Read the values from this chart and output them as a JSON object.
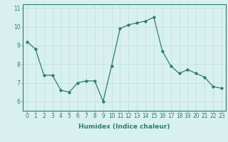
{
  "x": [
    0,
    1,
    2,
    3,
    4,
    5,
    6,
    7,
    8,
    9,
    10,
    11,
    12,
    13,
    14,
    15,
    16,
    17,
    18,
    19,
    20,
    21,
    22,
    23
  ],
  "y": [
    9.2,
    8.8,
    7.4,
    7.4,
    6.6,
    6.5,
    7.0,
    7.1,
    7.1,
    6.0,
    7.9,
    9.9,
    10.1,
    10.2,
    10.3,
    10.5,
    8.7,
    7.9,
    7.5,
    7.7,
    7.5,
    7.3,
    6.8,
    6.7
  ],
  "xlabel": "Humidex (Indice chaleur)",
  "ylim": [
    5.5,
    11.2
  ],
  "xlim": [
    -0.5,
    23.5
  ],
  "yticks": [
    6,
    7,
    8,
    9,
    10,
    11
  ],
  "xticks": [
    0,
    1,
    2,
    3,
    4,
    5,
    6,
    7,
    8,
    9,
    10,
    11,
    12,
    13,
    14,
    15,
    16,
    17,
    18,
    19,
    20,
    21,
    22,
    23
  ],
  "line_color": "#2e7d6e",
  "marker": "D",
  "marker_size": 1.8,
  "line_width": 0.9,
  "bg_color": "#d8f0f0",
  "grid_color": "#c0dede",
  "axis_color": "#2e7d6e",
  "tick_color": "#2e7d6e",
  "xlabel_fontsize": 6.5,
  "tick_fontsize": 5.5,
  "xlabel_color": "#2e7d6e",
  "xlabel_fontweight": "bold"
}
